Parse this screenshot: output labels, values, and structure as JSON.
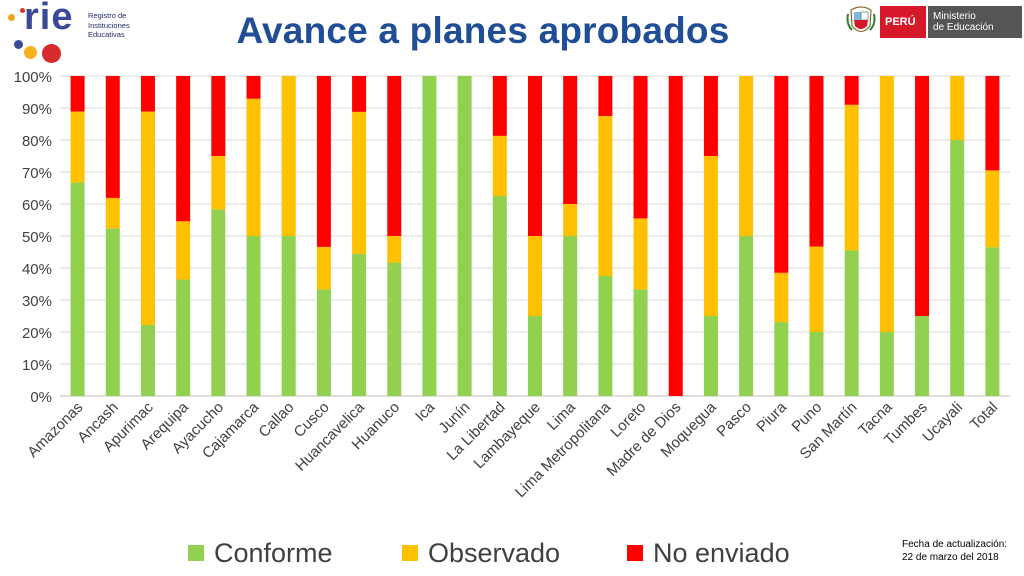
{
  "header": {
    "title": "Avance a planes aprobados",
    "rie_logo": {
      "word": "rie",
      "subtitle_lines": [
        "Registro de",
        "Instituciones",
        "Educativas"
      ]
    },
    "minedu_logo": {
      "country": "PERÚ",
      "ministry_lines": [
        "Ministerio",
        "de Educación"
      ]
    }
  },
  "footer": {
    "update_label": "Fecha de actualización:",
    "update_date": "22 de marzo del 2018"
  },
  "colors": {
    "conforme": "#92D050",
    "observado": "#FFC000",
    "no_enviado": "#FF0000",
    "title": "#1F4E96",
    "axis_text": "#404040"
  },
  "chart_data": {
    "type": "bar",
    "stacked": true,
    "title": "Avance a planes aprobados",
    "xlabel": "",
    "ylabel": "",
    "ylim": [
      0,
      100
    ],
    "y_ticks": [
      "0%",
      "10%",
      "20%",
      "30%",
      "40%",
      "50%",
      "60%",
      "70%",
      "80%",
      "90%",
      "100%"
    ],
    "grid": true,
    "legend_position": "bottom",
    "categories": [
      "Amazonas",
      "Ancash",
      "Apurimac",
      "Arequipa",
      "Ayacucho",
      "Cajamarca",
      "Callao",
      "Cusco",
      "Huancavelica",
      "Huanuco",
      "Ica",
      "Junín",
      "La Libertad",
      "Lambayeque",
      "Lima",
      "Lima Metropolitana",
      "Loreto",
      "Madre de Dios",
      "Moquegua",
      "Pasco",
      "Piura",
      "Puno",
      "San Martín",
      "Tacna",
      "Tumbes",
      "Ucayali",
      "Total"
    ],
    "series": [
      {
        "name": "Conforme",
        "color": "#92D050",
        "values": [
          66.7,
          52.4,
          22.2,
          36.4,
          58.3,
          50.0,
          50.0,
          33.3,
          44.4,
          41.7,
          100,
          100,
          62.5,
          25.0,
          50.0,
          37.5,
          33.3,
          0,
          25.0,
          50.0,
          23.1,
          20.0,
          45.5,
          20.0,
          25.0,
          80.0,
          46.5
        ]
      },
      {
        "name": "Observado",
        "color": "#FFC000",
        "values": [
          22.2,
          9.5,
          66.7,
          18.2,
          16.7,
          42.9,
          50.0,
          13.3,
          44.4,
          8.3,
          0,
          0,
          18.8,
          25.0,
          10.0,
          50.0,
          22.2,
          0,
          50.0,
          50.0,
          15.4,
          26.7,
          45.5,
          80.0,
          0,
          20.0,
          24.0
        ]
      },
      {
        "name": "No enviado",
        "color": "#FF0000",
        "values": [
          11.1,
          38.1,
          11.1,
          45.4,
          25.0,
          7.1,
          0,
          53.4,
          11.2,
          50.0,
          0,
          0,
          18.7,
          50.0,
          40.0,
          12.5,
          44.5,
          100,
          25.0,
          0,
          61.5,
          53.3,
          9.0,
          0,
          75.0,
          0,
          29.5
        ]
      }
    ]
  }
}
